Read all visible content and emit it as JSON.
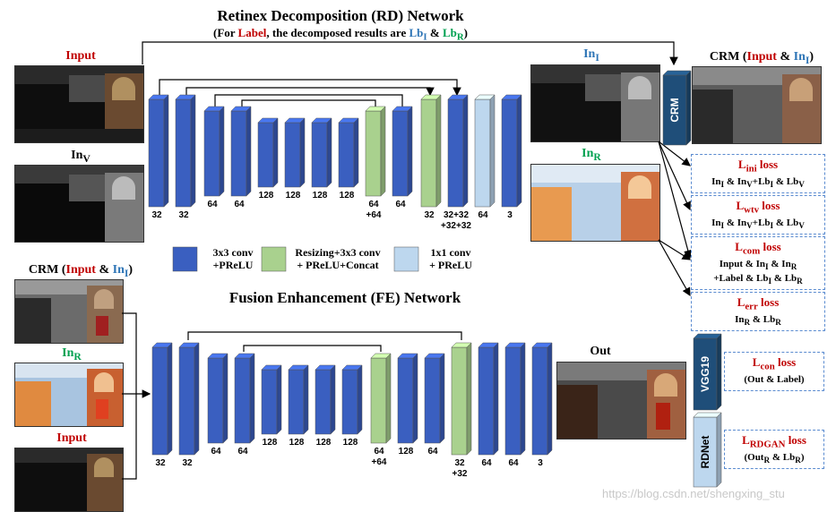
{
  "rd": {
    "title": "Retinex Decomposition (RD) Network",
    "subtitle_prefix": "(For ",
    "subtitle_label": "Label",
    "subtitle_mid": ", the decomposed results are ",
    "subtitle_lbi": "Lb",
    "subtitle_lbi_sub": "I",
    "subtitle_amp": " & ",
    "subtitle_lbr": "Lb",
    "subtitle_lbr_sub": "R",
    "subtitle_suffix": ")",
    "layers": [
      "32",
      "32",
      "64",
      "64",
      "128",
      "128",
      "128",
      "128",
      "64\n+64",
      "64",
      "32",
      "32+32\n+32+32",
      "64",
      "3"
    ]
  },
  "fe": {
    "title": "Fusion Enhancement (FE) Network",
    "layers": [
      "32",
      "32",
      "64",
      "64",
      "128",
      "128",
      "128",
      "128",
      "64\n+64",
      "128",
      "64",
      "32\n+32",
      "64",
      "64",
      "3"
    ]
  },
  "images": {
    "input_top": "Input",
    "inv": "In",
    "inv_sub": "V",
    "crm_left_prefix": "CRM (",
    "crm_left_input": "Input",
    "crm_left_amp": " & ",
    "crm_left_in": "In",
    "crm_left_in_sub": "I",
    "crm_left_suffix": ")",
    "inr_left": "In",
    "inr_left_sub": "R",
    "input_bottom": "Input",
    "ini_right": "In",
    "ini_right_sub": "I",
    "inr_right": "In",
    "inr_right_sub": "R",
    "crm_right_prefix": "CRM (",
    "crm_right_input": "Input",
    "crm_right_amp": " & ",
    "crm_right_in": "In",
    "crm_right_in_sub": "I",
    "crm_right_suffix": ")",
    "out": "Out"
  },
  "legend": {
    "conv": "3x3 conv\n+PReLU",
    "resize": "Resizing+3x3 conv\n+ PReLU+Concat",
    "conv1": "1x1 conv\n+ PReLU"
  },
  "modules": {
    "crm": "CRM",
    "vgg": "VGG19",
    "rdnet": "RDNet"
  },
  "losses": {
    "ini": {
      "title": "L",
      "sub": "ini",
      "suffix": " loss",
      "body": "In_I & In_V+Lb_I & Lb_V"
    },
    "wtv": {
      "title": "L",
      "sub": "wtv",
      "suffix": " loss",
      "body": "In_I & In_V+Lb_I & Lb_V"
    },
    "com": {
      "title": "L",
      "sub": "com",
      "suffix": " loss",
      "body1": "Input & In_I & In_R",
      "body2": "+Label & Lb_I & Lb_R"
    },
    "err": {
      "title": "L",
      "sub": "err",
      "suffix": " loss",
      "body": "In_R & Lb_R"
    },
    "con": {
      "title": "L",
      "sub": "con",
      "suffix": " loss",
      "body": "(Out & Label)"
    },
    "rdgan": {
      "title": "L",
      "sub": "RDGAN",
      "suffix": " loss",
      "body": "(Out_R & Lb_R)"
    }
  },
  "watermark": "https://blog.csdn.net/shengxing_stu",
  "colors": {
    "conv": "#3a5fc0",
    "resize": "#a9d18e",
    "conv1": "#bdd7ee",
    "module": "#1f4e79",
    "loss_title": "#c00000",
    "blue_text": "#2e75b6",
    "green_text": "#00a050"
  }
}
